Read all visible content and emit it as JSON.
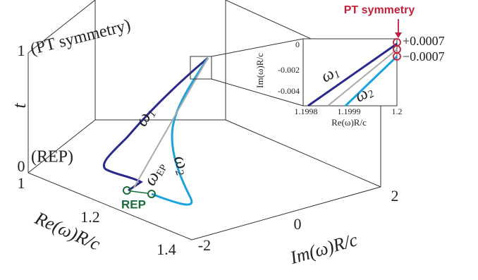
{
  "figure": {
    "axes": {
      "t_label": "t",
      "t_ticks": [
        "0",
        "1"
      ],
      "re_label": "Re(ω)R/c",
      "re_ticks": [
        "1",
        "1.2",
        "1.4"
      ],
      "im_label": "Im(ω)R/c",
      "im_ticks": [
        "-2",
        "0",
        "2"
      ]
    },
    "annotations": {
      "pt": "(PT symmetry)",
      "rep": "(REP)",
      "rep_marker": "REP",
      "pt_marker": "PT symmetry",
      "w1": {
        "base": "ω",
        "sub": "1"
      },
      "w2": {
        "base": "ω",
        "sub": "2"
      },
      "wep": {
        "base": "ω",
        "sub": "EP"
      }
    },
    "inset": {
      "x_label": "Re(ω)R/c",
      "y_label": "Im(ω)R/c",
      "x_ticks": [
        "1.1998",
        "1.1999",
        "1.2"
      ],
      "y_ticks": [
        "0",
        "-0.002",
        "-0.004"
      ],
      "right_labels": [
        "+0.0007",
        "−0.0007"
      ],
      "w1": {
        "base": "ω",
        "sub": "1"
      },
      "w2": {
        "base": "ω",
        "sub": "2"
      }
    }
  }
}
